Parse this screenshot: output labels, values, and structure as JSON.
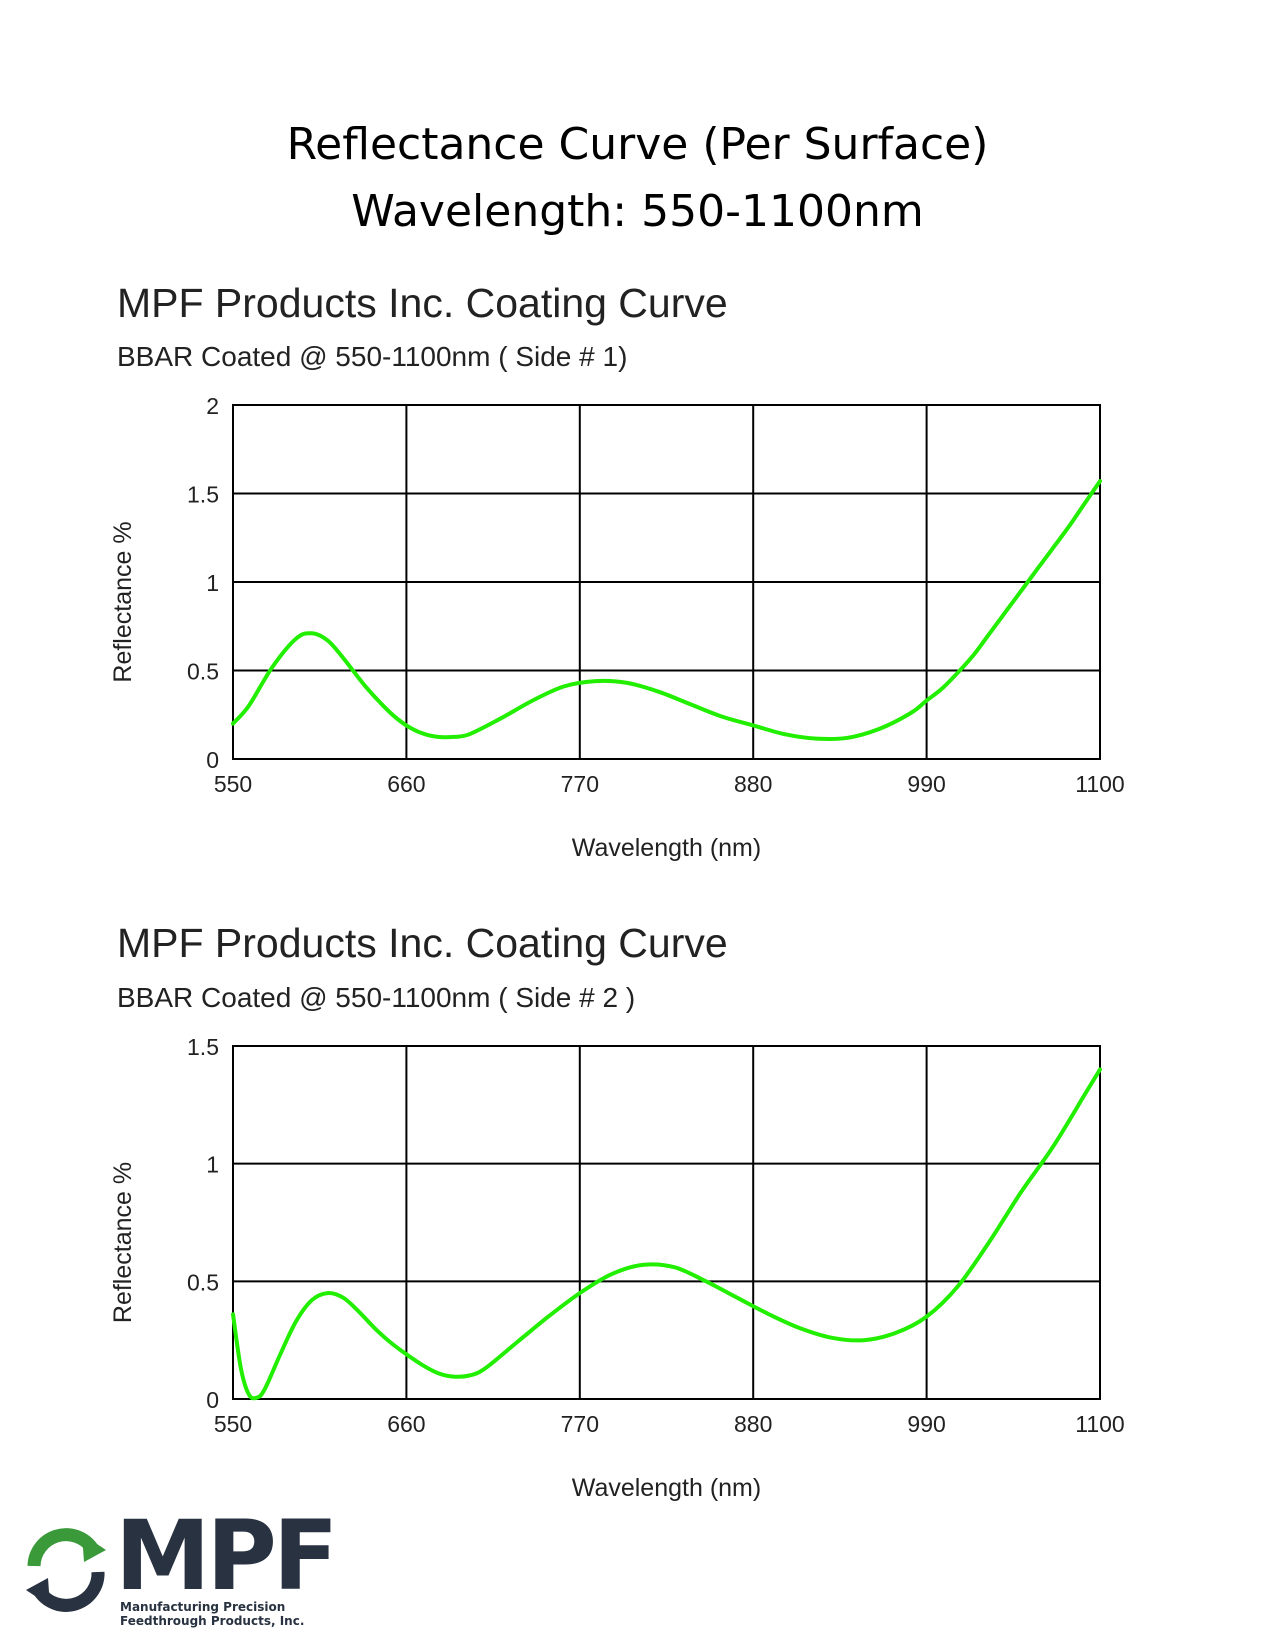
{
  "page": {
    "title_line1": "Reflectance Curve (Per Surface)",
    "title_line2": "Wavelength: 550-1100nm"
  },
  "colors": {
    "curve": "#22ee00",
    "grid": "#000000",
    "logo_green": "#3a9a3a",
    "logo_dark": "#283241"
  },
  "chart_data": [
    {
      "type": "line",
      "title": "MPF Products Inc. Coating Curve",
      "subtitle": "BBAR Coated @ 550-1100nm ( Side #  1)",
      "xlabel": "Wavelength (nm)",
      "ylabel": "Reflectance %",
      "xlim": [
        550,
        1100
      ],
      "ylim": [
        0,
        2
      ],
      "x_ticks": [
        "550",
        "660",
        "770",
        "880",
        "990",
        "1100"
      ],
      "y_ticks": [
        "0",
        "0.5",
        "1",
        "1.5",
        "2"
      ],
      "grid": true,
      "series": [
        {
          "x": [
            550,
            560,
            575,
            590,
            600,
            610,
            620,
            635,
            650,
            660,
            670,
            680,
            690,
            700,
            720,
            740,
            760,
            780,
            800,
            820,
            840,
            860,
            880,
            900,
            920,
            940,
            960,
            980,
            990,
            1000,
            1010,
            1020,
            1030,
            1040,
            1050,
            1060,
            1070,
            1080,
            1090,
            1100
          ],
          "y": [
            0.2,
            0.3,
            0.52,
            0.68,
            0.71,
            0.67,
            0.57,
            0.4,
            0.26,
            0.19,
            0.145,
            0.125,
            0.125,
            0.14,
            0.23,
            0.33,
            0.41,
            0.44,
            0.43,
            0.38,
            0.31,
            0.24,
            0.19,
            0.14,
            0.115,
            0.12,
            0.17,
            0.26,
            0.33,
            0.4,
            0.49,
            0.59,
            0.71,
            0.83,
            0.95,
            1.07,
            1.19,
            1.31,
            1.44,
            1.57
          ]
        }
      ]
    },
    {
      "type": "line",
      "title": "MPF Products Inc. Coating Curve",
      "subtitle": "BBAR Coated @ 550-1100nm ( Side # 2 )",
      "xlabel": "Wavelength (nm)",
      "ylabel": "Reflectance %",
      "xlim": [
        550,
        1100
      ],
      "ylim": [
        0,
        1.5
      ],
      "x_ticks": [
        "550",
        "660",
        "770",
        "880",
        "990",
        "1100"
      ],
      "y_ticks": [
        "0",
        "0.5",
        "1",
        "1.5"
      ],
      "grid": true,
      "series": [
        {
          "x": [
            550,
            555,
            560,
            565,
            570,
            580,
            590,
            600,
            610,
            620,
            630,
            640,
            650,
            660,
            670,
            680,
            690,
            700,
            710,
            730,
            750,
            770,
            790,
            810,
            830,
            850,
            870,
            890,
            910,
            930,
            950,
            970,
            990,
            1010,
            1030,
            1050,
            1070,
            1090,
            1100
          ],
          "y": [
            0.36,
            0.13,
            0.02,
            0.005,
            0.04,
            0.19,
            0.33,
            0.42,
            0.45,
            0.43,
            0.37,
            0.3,
            0.24,
            0.19,
            0.145,
            0.11,
            0.095,
            0.1,
            0.13,
            0.24,
            0.35,
            0.45,
            0.53,
            0.57,
            0.56,
            0.5,
            0.43,
            0.36,
            0.3,
            0.26,
            0.25,
            0.28,
            0.35,
            0.48,
            0.67,
            0.88,
            1.07,
            1.29,
            1.4
          ]
        }
      ]
    }
  ],
  "logo": {
    "text": "MPF",
    "sub_line1": "Manufacturing Precision",
    "sub_line2": "Feedthrough Products, Inc."
  }
}
